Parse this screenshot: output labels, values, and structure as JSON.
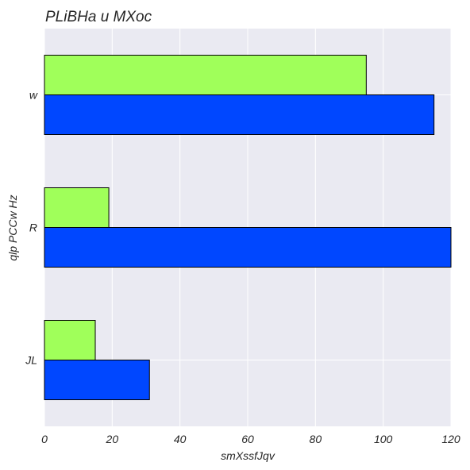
{
  "chart_data": {
    "type": "bar",
    "orientation": "horizontal",
    "title": "PLiBHa u MXoc",
    "xlabel": "smXssfJqv",
    "ylabel": "qlp  PCCw Hz",
    "categories": [
      "w",
      "R",
      "JL"
    ],
    "series": [
      {
        "color": "#a0ff5a",
        "values": [
          95,
          19,
          15
        ]
      },
      {
        "color": "#0047ff",
        "values": [
          115,
          120,
          31
        ]
      }
    ],
    "xlim": [
      0,
      120
    ],
    "xticks": [
      0,
      20,
      40,
      60,
      80,
      100,
      120
    ],
    "grid": true,
    "background": "#eaeaf2",
    "legend": "none"
  }
}
